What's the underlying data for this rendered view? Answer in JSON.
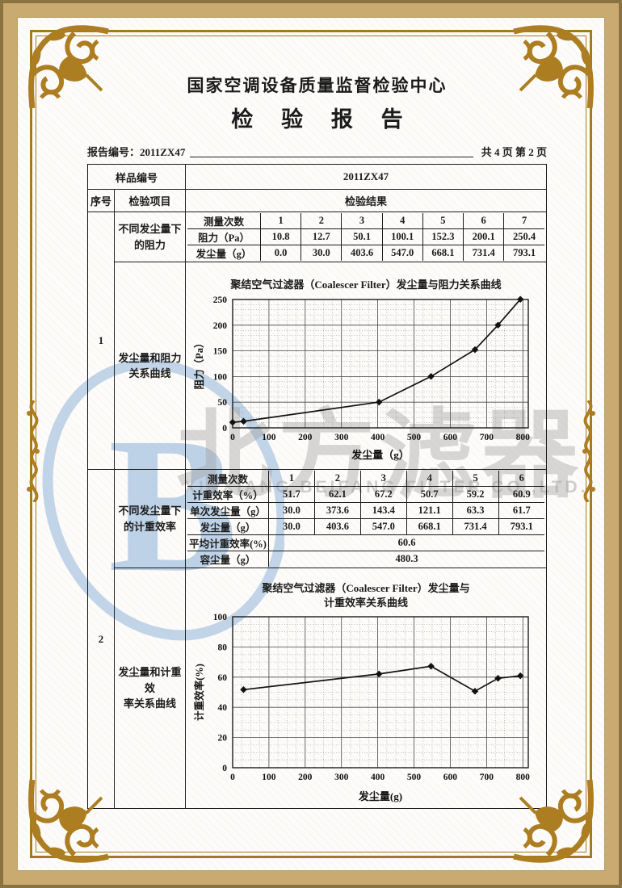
{
  "header": {
    "org_title": "国家空调设备质量监督检验中心",
    "doc_title": "检 验 报 告",
    "report_no_label": "报告编号：",
    "report_no_value": "2011ZX47",
    "page_info": "共 4 页 第 2 页"
  },
  "sample_row": {
    "label": "样品编号",
    "value": "2011ZX47"
  },
  "table_headers": {
    "serial": "序号",
    "item": "检验项目",
    "result": "检验结果"
  },
  "section1": {
    "serial": "1",
    "item_top": "不同发尘量下\n的阻力",
    "item_bottom": "发尘量和阻力\n关系曲线",
    "table": {
      "rows": [
        {
          "label": "测量次数",
          "values": [
            "1",
            "2",
            "3",
            "4",
            "5",
            "6",
            "7"
          ]
        },
        {
          "label": "阻力（Pa）",
          "values": [
            "10.8",
            "12.7",
            "50.1",
            "100.1",
            "152.3",
            "200.1",
            "250.4"
          ]
        },
        {
          "label": "发尘量（g）",
          "values": [
            "0.0",
            "30.0",
            "403.6",
            "547.0",
            "668.1",
            "731.4",
            "793.1"
          ]
        }
      ]
    }
  },
  "section2": {
    "serial": "2",
    "item_top": "不同发尘量下\n的计重效率",
    "item_bottom": "发尘量和计重效\n率关系曲线",
    "table": {
      "rows": [
        {
          "label": "测量次数",
          "values": [
            "1",
            "2",
            "3",
            "4",
            "5",
            "6"
          ]
        },
        {
          "label": "计重效率（%）",
          "values": [
            "51.7",
            "62.1",
            "67.2",
            "50.7",
            "59.2",
            "60.9"
          ]
        },
        {
          "label": "单次发尘量（g）",
          "values": [
            "30.0",
            "373.6",
            "143.4",
            "121.1",
            "63.3",
            "61.7"
          ]
        },
        {
          "label": "发尘量（g）",
          "values": [
            "30.0",
            "403.6",
            "547.0",
            "668.1",
            "731.4",
            "793.1"
          ]
        },
        {
          "label": "平均计重效率(%)",
          "values": [
            "60.6"
          ],
          "span": true
        },
        {
          "label": "容尘量（g）",
          "values": [
            "480.3"
          ],
          "span": true
        }
      ]
    }
  },
  "chart_data": [
    {
      "type": "line",
      "title": "聚结空气过滤器（Coalescer Filter）发尘量与阻力关系曲线",
      "xlabel": "发尘量（g）",
      "ylabel": "阻力（Pa）",
      "x": [
        0.0,
        30.0,
        403.6,
        547.0,
        668.1,
        731.4,
        793.1
      ],
      "y": [
        10.8,
        12.7,
        50.1,
        100.1,
        152.3,
        200.1,
        250.4
      ],
      "xlim": [
        0,
        815
      ],
      "ylim": [
        0,
        250
      ],
      "xticks": [
        0,
        100,
        200,
        300,
        400,
        500,
        600,
        700,
        800
      ],
      "yticks": [
        0,
        50,
        100,
        150,
        200,
        250
      ],
      "x_minor": 25,
      "y_minor": 10,
      "grid": true,
      "legend": "none"
    },
    {
      "type": "line",
      "title": "聚结空气过滤器（Coalescer Filter）发尘量与\n计重效率关系曲线",
      "xlabel": "发尘量(g)",
      "ylabel": "计重效率(%)",
      "x": [
        30.0,
        403.6,
        547.0,
        668.1,
        731.4,
        793.1
      ],
      "y": [
        51.7,
        62.1,
        67.2,
        50.7,
        59.2,
        60.9
      ],
      "xlim": [
        0,
        815
      ],
      "ylim": [
        0,
        100
      ],
      "xticks": [
        0,
        100,
        200,
        300,
        400,
        500,
        600,
        700,
        800
      ],
      "yticks": [
        0,
        20,
        40,
        60,
        80,
        100
      ],
      "x_minor": 25,
      "y_minor": 5,
      "grid": true,
      "legend": "none"
    }
  ],
  "watermark": {
    "logo_letter": "B",
    "cn": "北方滤器",
    "en": "XINXIANG BEIFANG FILTER CO.,LTD."
  },
  "colors": {
    "border_gold": "#a5791f",
    "ornament_gold": "#ad7d22",
    "page_tan": "#c9ab72",
    "watermark_blue": "#aec7e2",
    "watermark_gray": "#9e9e9e",
    "ink": "#1c1c1c"
  }
}
